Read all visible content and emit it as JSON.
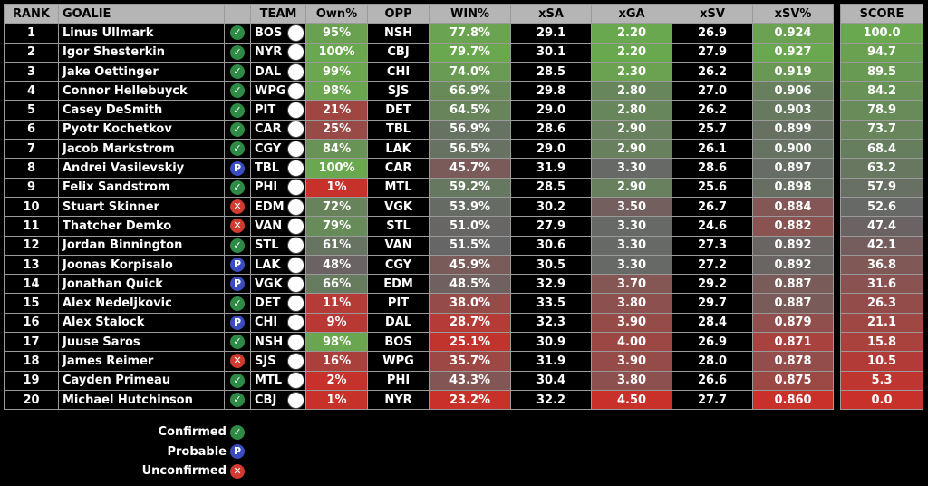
{
  "headers": {
    "rank": "RANK",
    "goalie": "GOALIE",
    "status": "",
    "team": "TEAM",
    "own": "Own%",
    "opp": "OPP",
    "win": "WIN%",
    "xsa": "xSA",
    "xga": "xGA",
    "xsv": "xSV",
    "xsvp": "xSV%",
    "score": "SCORE"
  },
  "status_icons": {
    "confirmed": "✓",
    "probable": "P",
    "unconfirmed": "✕"
  },
  "colors": {
    "green": "#6aa84f",
    "gray": "#666666",
    "red": "#c8302a"
  },
  "rows": [
    {
      "rank": "1",
      "goalie": "Linus Ullmark",
      "status": "confirmed",
      "team": "BOS",
      "own": "95%",
      "opp": "NSH",
      "win": "77.8%",
      "xsa": "29.1",
      "xga": "2.20",
      "xsv": "26.9",
      "xsvp": "0.924",
      "score": "100.0"
    },
    {
      "rank": "2",
      "goalie": "Igor Shesterkin",
      "status": "confirmed",
      "team": "NYR",
      "own": "100%",
      "opp": "CBJ",
      "win": "79.7%",
      "xsa": "30.1",
      "xga": "2.20",
      "xsv": "27.9",
      "xsvp": "0.927",
      "score": "94.7"
    },
    {
      "rank": "3",
      "goalie": "Jake Oettinger",
      "status": "confirmed",
      "team": "DAL",
      "own": "99%",
      "opp": "CHI",
      "win": "74.0%",
      "xsa": "28.5",
      "xga": "2.30",
      "xsv": "26.2",
      "xsvp": "0.919",
      "score": "89.5"
    },
    {
      "rank": "4",
      "goalie": "Connor Hellebuyck",
      "status": "confirmed",
      "team": "WPG",
      "own": "98%",
      "opp": "SJS",
      "win": "66.9%",
      "xsa": "29.8",
      "xga": "2.80",
      "xsv": "27.0",
      "xsvp": "0.906",
      "score": "84.2"
    },
    {
      "rank": "5",
      "goalie": "Casey DeSmith",
      "status": "confirmed",
      "team": "PIT",
      "own": "21%",
      "opp": "DET",
      "win": "64.5%",
      "xsa": "29.0",
      "xga": "2.80",
      "xsv": "26.2",
      "xsvp": "0.903",
      "score": "78.9"
    },
    {
      "rank": "6",
      "goalie": "Pyotr Kochetkov",
      "status": "confirmed",
      "team": "CAR",
      "own": "25%",
      "opp": "TBL",
      "win": "56.9%",
      "xsa": "28.6",
      "xga": "2.90",
      "xsv": "25.7",
      "xsvp": "0.899",
      "score": "73.7"
    },
    {
      "rank": "7",
      "goalie": "Jacob Markstrom",
      "status": "confirmed",
      "team": "CGY",
      "own": "84%",
      "opp": "LAK",
      "win": "56.5%",
      "xsa": "29.0",
      "xga": "2.90",
      "xsv": "26.1",
      "xsvp": "0.900",
      "score": "68.4"
    },
    {
      "rank": "8",
      "goalie": "Andrei Vasilevskiy",
      "status": "probable",
      "team": "TBL",
      "own": "100%",
      "opp": "CAR",
      "win": "45.7%",
      "xsa": "31.9",
      "xga": "3.30",
      "xsv": "28.6",
      "xsvp": "0.897",
      "score": "63.2"
    },
    {
      "rank": "9",
      "goalie": "Felix Sandstrom",
      "status": "confirmed",
      "team": "PHI",
      "own": "1%",
      "opp": "MTL",
      "win": "59.2%",
      "xsa": "28.5",
      "xga": "2.90",
      "xsv": "25.6",
      "xsvp": "0.898",
      "score": "57.9"
    },
    {
      "rank": "10",
      "goalie": "Stuart Skinner",
      "status": "unconfirmed",
      "team": "EDM",
      "own": "72%",
      "opp": "VGK",
      "win": "53.9%",
      "xsa": "30.2",
      "xga": "3.50",
      "xsv": "26.7",
      "xsvp": "0.884",
      "score": "52.6"
    },
    {
      "rank": "11",
      "goalie": "Thatcher Demko",
      "status": "unconfirmed",
      "team": "VAN",
      "own": "79%",
      "opp": "STL",
      "win": "51.0%",
      "xsa": "27.9",
      "xga": "3.30",
      "xsv": "24.6",
      "xsvp": "0.882",
      "score": "47.4"
    },
    {
      "rank": "12",
      "goalie": "Jordan Binnington",
      "status": "confirmed",
      "team": "STL",
      "own": "61%",
      "opp": "VAN",
      "win": "51.5%",
      "xsa": "30.6",
      "xga": "3.30",
      "xsv": "27.3",
      "xsvp": "0.892",
      "score": "42.1"
    },
    {
      "rank": "13",
      "goalie": "Joonas Korpisalo",
      "status": "probable",
      "team": "LAK",
      "own": "48%",
      "opp": "CGY",
      "win": "45.9%",
      "xsa": "30.5",
      "xga": "3.30",
      "xsv": "27.2",
      "xsvp": "0.892",
      "score": "36.8"
    },
    {
      "rank": "14",
      "goalie": "Jonathan Quick",
      "status": "probable",
      "team": "VGK",
      "own": "66%",
      "opp": "EDM",
      "win": "48.5%",
      "xsa": "32.9",
      "xga": "3.70",
      "xsv": "29.2",
      "xsvp": "0.887",
      "score": "31.6"
    },
    {
      "rank": "15",
      "goalie": "Alex Nedeljkovic",
      "status": "confirmed",
      "team": "DET",
      "own": "11%",
      "opp": "PIT",
      "win": "38.0%",
      "xsa": "33.5",
      "xga": "3.80",
      "xsv": "29.7",
      "xsvp": "0.887",
      "score": "26.3"
    },
    {
      "rank": "16",
      "goalie": "Alex Stalock",
      "status": "probable",
      "team": "CHI",
      "own": "9%",
      "opp": "DAL",
      "win": "28.7%",
      "xsa": "32.3",
      "xga": "3.90",
      "xsv": "28.4",
      "xsvp": "0.879",
      "score": "21.1"
    },
    {
      "rank": "17",
      "goalie": "Juuse Saros",
      "status": "confirmed",
      "team": "NSH",
      "own": "98%",
      "opp": "BOS",
      "win": "25.1%",
      "xsa": "30.9",
      "xga": "4.00",
      "xsv": "26.9",
      "xsvp": "0.871",
      "score": "15.8"
    },
    {
      "rank": "18",
      "goalie": "James Reimer",
      "status": "unconfirmed",
      "team": "SJS",
      "own": "16%",
      "opp": "WPG",
      "win": "35.7%",
      "xsa": "31.9",
      "xga": "3.90",
      "xsv": "28.0",
      "xsvp": "0.878",
      "score": "10.5"
    },
    {
      "rank": "19",
      "goalie": "Cayden Primeau",
      "status": "confirmed",
      "team": "MTL",
      "own": "2%",
      "opp": "PHI",
      "win": "43.3%",
      "xsa": "30.4",
      "xga": "3.80",
      "xsv": "26.6",
      "xsvp": "0.875",
      "score": "5.3"
    },
    {
      "rank": "20",
      "goalie": "Michael Hutchinson",
      "status": "confirmed",
      "team": "CBJ",
      "own": "1%",
      "opp": "NYR",
      "win": "23.2%",
      "xsa": "32.2",
      "xga": "4.50",
      "xsv": "27.7",
      "xsvp": "0.860",
      "score": "0.0"
    }
  ],
  "legend": [
    {
      "label": "Confirmed",
      "status": "confirmed"
    },
    {
      "label": "Probable",
      "status": "probable"
    },
    {
      "label": "Unconfirmed",
      "status": "unconfirmed"
    }
  ]
}
